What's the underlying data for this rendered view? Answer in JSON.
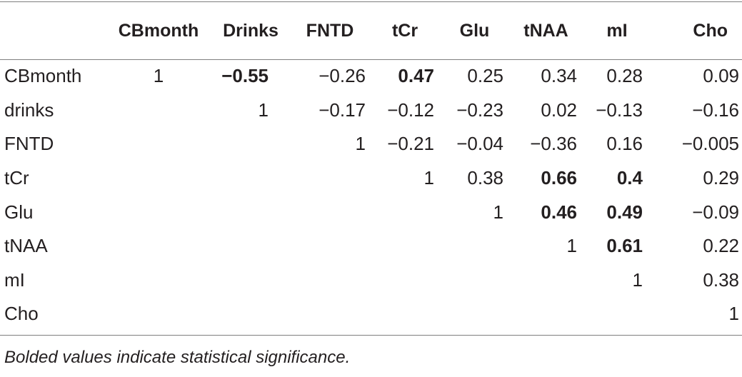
{
  "table": {
    "headers": [
      "",
      "CBmonth",
      "Drinks",
      "FNTD",
      "tCr",
      "Glu",
      "tNAA",
      "mI",
      "Cho"
    ],
    "rows": [
      {
        "label": "CBmonth",
        "cells": [
          {
            "text": "1",
            "bold": false
          },
          {
            "text": "−0.55",
            "bold": true
          },
          {
            "text": "−0.26",
            "bold": false
          },
          {
            "text": "0.47",
            "bold": true
          },
          {
            "text": "0.25",
            "bold": false
          },
          {
            "text": "0.34",
            "bold": false
          },
          {
            "text": "0.28",
            "bold": false
          },
          {
            "text": "0.09",
            "bold": false
          }
        ]
      },
      {
        "label": "drinks",
        "cells": [
          {
            "text": "",
            "bold": false
          },
          {
            "text": "1",
            "bold": false
          },
          {
            "text": "−0.17",
            "bold": false
          },
          {
            "text": "−0.12",
            "bold": false
          },
          {
            "text": "−0.23",
            "bold": false
          },
          {
            "text": "0.02",
            "bold": false
          },
          {
            "text": "−0.13",
            "bold": false
          },
          {
            "text": "−0.16",
            "bold": false
          }
        ]
      },
      {
        "label": "FNTD",
        "cells": [
          {
            "text": "",
            "bold": false
          },
          {
            "text": "",
            "bold": false
          },
          {
            "text": "1",
            "bold": false
          },
          {
            "text": "−0.21",
            "bold": false
          },
          {
            "text": "−0.04",
            "bold": false
          },
          {
            "text": "−0.36",
            "bold": false
          },
          {
            "text": "0.16",
            "bold": false
          },
          {
            "text": "−0.005",
            "bold": false
          }
        ]
      },
      {
        "label": "tCr",
        "cells": [
          {
            "text": "",
            "bold": false
          },
          {
            "text": "",
            "bold": false
          },
          {
            "text": "",
            "bold": false
          },
          {
            "text": "1",
            "bold": false
          },
          {
            "text": "0.38",
            "bold": false
          },
          {
            "text": "0.66",
            "bold": true
          },
          {
            "text": "0.4",
            "bold": true
          },
          {
            "text": "0.29",
            "bold": false
          }
        ]
      },
      {
        "label": "Glu",
        "cells": [
          {
            "text": "",
            "bold": false
          },
          {
            "text": "",
            "bold": false
          },
          {
            "text": "",
            "bold": false
          },
          {
            "text": "",
            "bold": false
          },
          {
            "text": "1",
            "bold": false
          },
          {
            "text": "0.46",
            "bold": true
          },
          {
            "text": "0.49",
            "bold": true
          },
          {
            "text": "−0.09",
            "bold": false
          }
        ]
      },
      {
        "label": "tNAA",
        "cells": [
          {
            "text": "",
            "bold": false
          },
          {
            "text": "",
            "bold": false
          },
          {
            "text": "",
            "bold": false
          },
          {
            "text": "",
            "bold": false
          },
          {
            "text": "",
            "bold": false
          },
          {
            "text": "1",
            "bold": false
          },
          {
            "text": "0.61",
            "bold": true
          },
          {
            "text": "0.22",
            "bold": false
          }
        ]
      },
      {
        "label": "mI",
        "cells": [
          {
            "text": "",
            "bold": false
          },
          {
            "text": "",
            "bold": false
          },
          {
            "text": "",
            "bold": false
          },
          {
            "text": "",
            "bold": false
          },
          {
            "text": "",
            "bold": false
          },
          {
            "text": "",
            "bold": false
          },
          {
            "text": "1",
            "bold": false
          },
          {
            "text": "0.38",
            "bold": false
          }
        ]
      },
      {
        "label": "Cho",
        "cells": [
          {
            "text": "",
            "bold": false
          },
          {
            "text": "",
            "bold": false
          },
          {
            "text": "",
            "bold": false
          },
          {
            "text": "",
            "bold": false
          },
          {
            "text": "",
            "bold": false
          },
          {
            "text": "",
            "bold": false
          },
          {
            "text": "",
            "bold": false
          },
          {
            "text": "1",
            "bold": false
          }
        ]
      }
    ],
    "footnote": "Bolded values indicate statistical significance."
  },
  "colors": {
    "text": "#231f20",
    "rule": "#7f7f7f",
    "background": "#ffffff"
  }
}
